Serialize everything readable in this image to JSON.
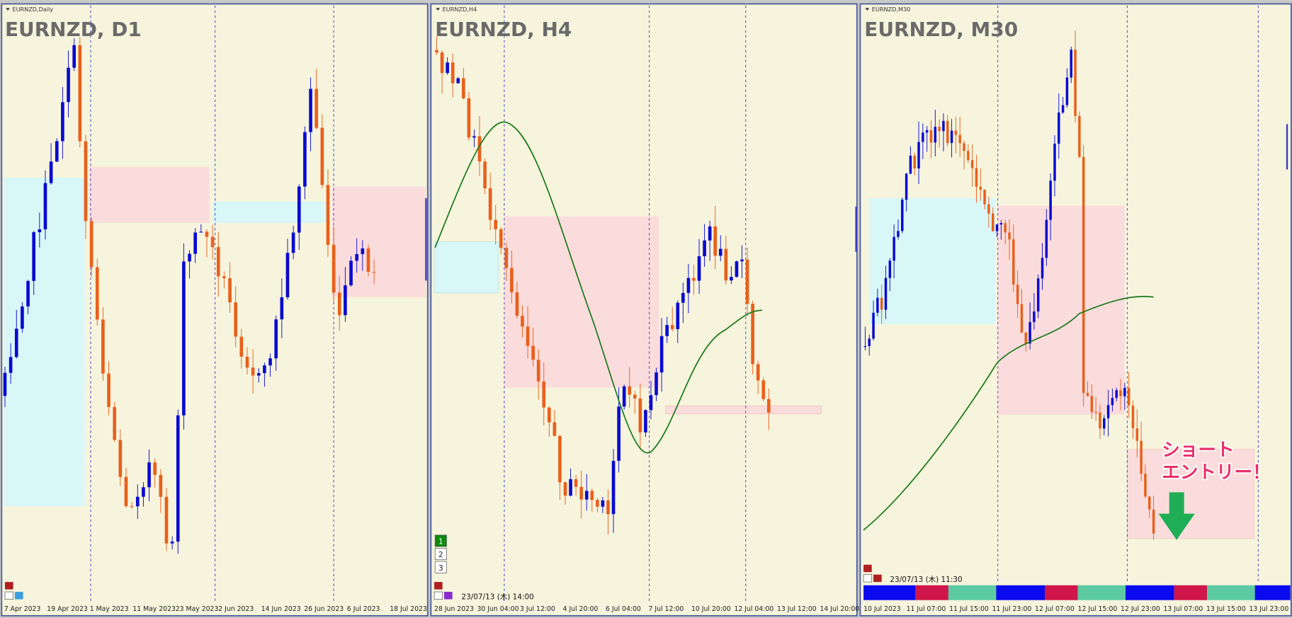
{
  "panels": [
    {
      "symbol_label": "EURNZD,Daily",
      "title": "EURNZD, D1",
      "x_labels": [
        "7 Apr 2023",
        "19 Apr 2023",
        "1 May 2023",
        "11 May 2023",
        "23 May 2023",
        "2 Jun 2023",
        "14 Jun 2023",
        "26 Jun 2023",
        "6 Jul 2023",
        "18 Jul 2023"
      ]
    },
    {
      "symbol_label": "EURNZD,H4",
      "title": "EURNZD, H4",
      "x_labels": [
        "28 Jun 2023",
        "30 Jun 04:00",
        "3 Jul 12:00",
        "4 Jul 20:00",
        "6 Jul 04:00",
        "7 Jul 12:00",
        "10 Jul 20:00",
        "12 Jul 04:00",
        "13 Jul 12:00",
        "14 Jul 20:00"
      ],
      "buttons": [
        "1",
        "2",
        "3"
      ],
      "timestamp": "23/07/13 (木) 14:00"
    },
    {
      "symbol_label": "EURNZD,M30",
      "title": "EURNZD, M30",
      "x_labels": [
        "10 Jul 2023",
        "11 Jul 07:00",
        "11 Jul 15:00",
        "11 Jul 23:00",
        "12 Jul 07:00",
        "12 Jul 15:00",
        "12 Jul 23:00",
        "13 Jul 07:00",
        "13 Jul 15:00",
        "13 Jul 23:00"
      ],
      "timestamp": "23/07/13 (木) 11:30",
      "annotation": [
        "ショート",
        "エントリー！"
      ]
    }
  ]
}
